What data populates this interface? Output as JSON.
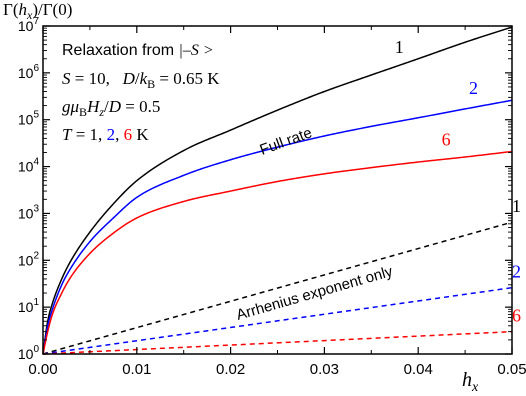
{
  "chart_data": {
    "type": "line",
    "title": "",
    "ylabel": "Γ(h_x)/Γ(0)",
    "xlabel": "h_x",
    "x_scale": "linear",
    "y_scale": "log",
    "xlim": [
      0,
      0.05
    ],
    "ylim": [
      1,
      10000000
    ],
    "x_ticks": [
      "0.00",
      "0.01",
      "0.02",
      "0.03",
      "0.04",
      "0.05"
    ],
    "y_ticks": [
      {
        "base": "10",
        "exp": "0"
      },
      {
        "base": "10",
        "exp": "1"
      },
      {
        "base": "10",
        "exp": "2"
      },
      {
        "base": "10",
        "exp": "3"
      },
      {
        "base": "10",
        "exp": "4"
      },
      {
        "base": "10",
        "exp": "5"
      },
      {
        "base": "10",
        "exp": "6"
      },
      {
        "base": "10",
        "exp": "7"
      }
    ],
    "grid": false,
    "annotations": {
      "line1_prefix": "Relaxation from ",
      "line1_ket": "|–S >",
      "line2": "S = 10,   D/k_B = 0.65 K",
      "line3": "gμ_B H_z/D = 0.5",
      "line4_prefix": "T = 1, ",
      "line4_t2": "2",
      "line4_sep": ", ",
      "line4_t6": "6",
      "line4_suffix": " K",
      "full_rate_label": "Full rate",
      "arrhenius_label": "Arrhenius exponent only"
    },
    "series": [
      {
        "label": "1",
        "style": "solid",
        "color": "#000000",
        "x": [
          0,
          0.0005,
          0.001,
          0.002,
          0.003,
          0.005,
          0.0075,
          0.01,
          0.015,
          0.02,
          0.025,
          0.03,
          0.035,
          0.04,
          0.045,
          0.05
        ],
        "y": [
          1,
          5,
          12,
          40,
          100,
          400,
          1600,
          5000,
          22000,
          60000,
          160000,
          400000,
          900000,
          2000000,
          4500000,
          9500000
        ]
      },
      {
        "label": "2",
        "style": "solid",
        "color": "#0000ff",
        "x": [
          0,
          0.0005,
          0.001,
          0.002,
          0.003,
          0.005,
          0.0075,
          0.01,
          0.015,
          0.02,
          0.025,
          0.03,
          0.035,
          0.04,
          0.045,
          0.05
        ],
        "y": [
          1,
          4,
          9,
          30,
          70,
          250,
          800,
          2200,
          6500,
          14000,
          26000,
          45000,
          72000,
          110000,
          170000,
          260000
        ]
      },
      {
        "label": "6",
        "style": "solid",
        "color": "#ff0000",
        "x": [
          0,
          0.0005,
          0.001,
          0.002,
          0.003,
          0.005,
          0.0075,
          0.01,
          0.015,
          0.02,
          0.025,
          0.03,
          0.035,
          0.04,
          0.045,
          0.05
        ],
        "y": [
          1,
          3,
          7,
          20,
          45,
          140,
          380,
          800,
          1800,
          3000,
          4800,
          7000,
          9500,
          12500,
          16000,
          21000
        ]
      },
      {
        "label": "1",
        "style": "dashed",
        "color": "#000000",
        "x": [
          0,
          0.05
        ],
        "y": [
          1,
          650
        ]
      },
      {
        "label": "2",
        "style": "dashed",
        "color": "#0000ff",
        "x": [
          0,
          0.05
        ],
        "y": [
          1,
          26
        ]
      },
      {
        "label": "6",
        "style": "dashed",
        "color": "#ff0000",
        "x": [
          0,
          0.05
        ],
        "y": [
          1,
          3.0
        ]
      }
    ]
  }
}
